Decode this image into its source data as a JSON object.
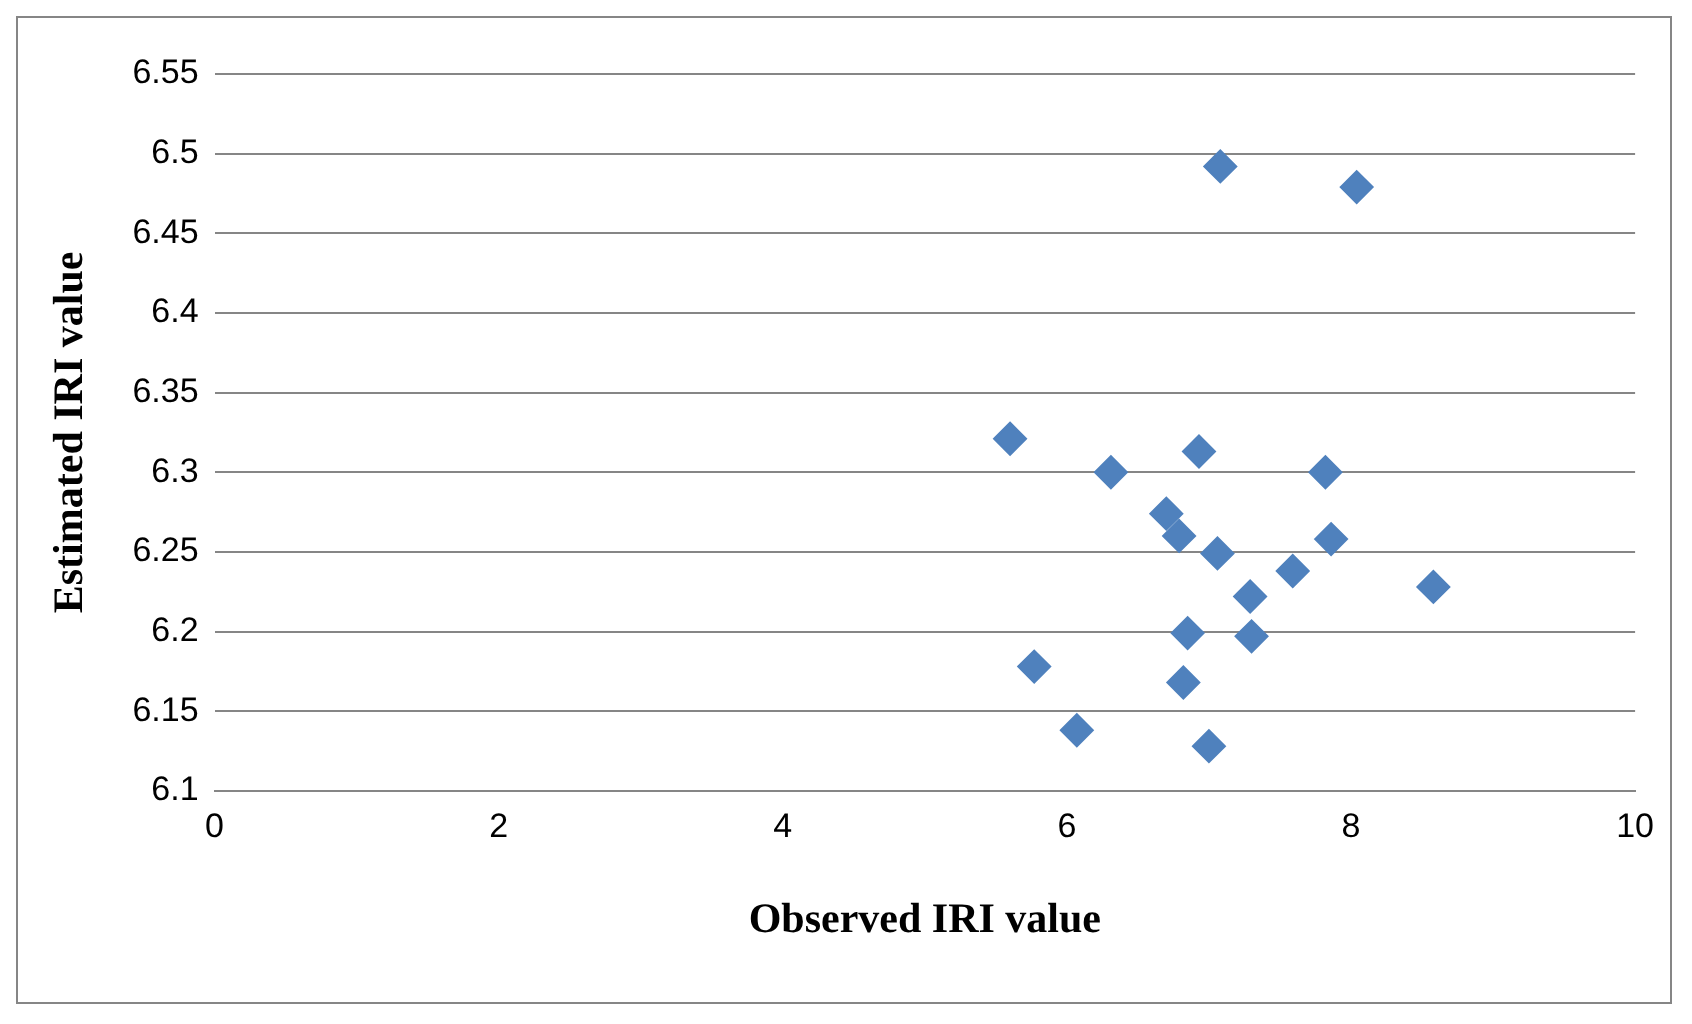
{
  "chart_data": {
    "type": "scatter",
    "xlabel": "Observed IRI value",
    "ylabel": "Estimated IRI value",
    "series": [
      {
        "color": "#4f81bd",
        "x": [
          7.08,
          8.04,
          5.6,
          6.31,
          6.93,
          7.82,
          6.7,
          6.79,
          7.06,
          7.86,
          7.59,
          7.29,
          8.58,
          6.85,
          7.3,
          5.77,
          6.82,
          6.07,
          7.0
        ],
        "values": [
          6.492,
          6.479,
          6.321,
          6.3,
          6.313,
          6.3,
          6.274,
          6.26,
          6.249,
          6.258,
          6.238,
          6.222,
          6.228,
          6.199,
          6.197,
          6.178,
          6.168,
          6.138,
          6.128
        ]
      }
    ],
    "xlim": [
      0,
      10
    ],
    "xticks": [
      0,
      2,
      4,
      6,
      8,
      10
    ],
    "ylim": [
      6.1,
      6.55
    ],
    "yticks": [
      6.1,
      6.15,
      6.2,
      6.25,
      6.3,
      6.35,
      6.4,
      6.45,
      6.5,
      6.55
    ],
    "grid": "y",
    "marker": "diamond",
    "legend": false
  }
}
